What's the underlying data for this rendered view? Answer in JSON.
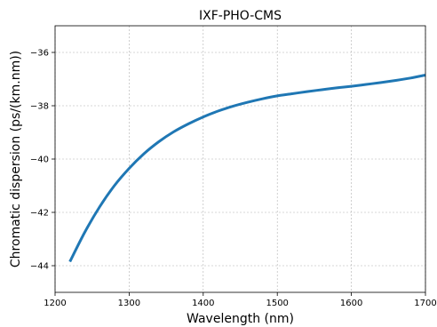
{
  "chart_data": {
    "type": "line",
    "title": "IXF-PHO-CMS",
    "xlabel": "Wavelength (nm)",
    "ylabel": "Chromatic dispersion (ps/(km.nm))",
    "xlim": [
      1200,
      1700
    ],
    "ylim": [
      -45,
      -35
    ],
    "xticks": [
      1200,
      1300,
      1400,
      1500,
      1600,
      1700
    ],
    "yticks": [
      -44,
      -42,
      -40,
      -38,
      -36
    ],
    "xtick_labels": [
      "1200",
      "1300",
      "1400",
      "1500",
      "1600",
      "1700"
    ],
    "ytick_labels": [
      "−44",
      "−42",
      "−40",
      "−38",
      "−36"
    ],
    "grid": true,
    "series": [
      {
        "color": "#1f77b4",
        "x": [
          1220,
          1240,
          1260,
          1280,
          1300,
          1320,
          1340,
          1360,
          1380,
          1400,
          1420,
          1440,
          1460,
          1480,
          1500,
          1520,
          1540,
          1560,
          1580,
          1600,
          1620,
          1640,
          1660,
          1680,
          1700
        ],
        "y": [
          -43.85,
          -42.75,
          -41.8,
          -41.0,
          -40.35,
          -39.8,
          -39.35,
          -38.98,
          -38.68,
          -38.42,
          -38.2,
          -38.02,
          -37.87,
          -37.74,
          -37.63,
          -37.55,
          -37.47,
          -37.4,
          -37.33,
          -37.27,
          -37.2,
          -37.13,
          -37.05,
          -36.96,
          -36.85
        ]
      }
    ]
  }
}
